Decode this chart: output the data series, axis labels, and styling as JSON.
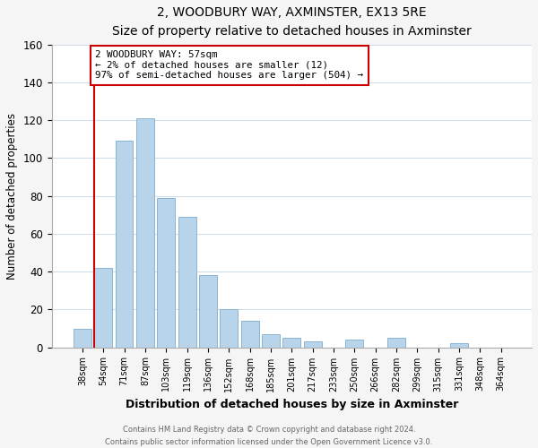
{
  "title": "2, WOODBURY WAY, AXMINSTER, EX13 5RE",
  "subtitle": "Size of property relative to detached houses in Axminster",
  "xlabel": "Distribution of detached houses by size in Axminster",
  "ylabel": "Number of detached properties",
  "bar_labels": [
    "38sqm",
    "54sqm",
    "71sqm",
    "87sqm",
    "103sqm",
    "119sqm",
    "136sqm",
    "152sqm",
    "168sqm",
    "185sqm",
    "201sqm",
    "217sqm",
    "233sqm",
    "250sqm",
    "266sqm",
    "282sqm",
    "299sqm",
    "315sqm",
    "331sqm",
    "348sqm",
    "364sqm"
  ],
  "bar_heights": [
    10,
    42,
    109,
    121,
    79,
    69,
    38,
    20,
    14,
    7,
    5,
    3,
    0,
    4,
    0,
    5,
    0,
    0,
    2,
    0,
    0
  ],
  "bar_color": "#b8d4ea",
  "bar_edge_color": "#8ab4d4",
  "vline_color": "#cc0000",
  "annotation_title": "2 WOODBURY WAY: 57sqm",
  "annotation_line1": "← 2% of detached houses are smaller (12)",
  "annotation_line2": "97% of semi-detached houses are larger (504) →",
  "annotation_box_color": "#ffffff",
  "annotation_box_edge": "#cc0000",
  "ylim": [
    0,
    160
  ],
  "yticks": [
    0,
    20,
    40,
    60,
    80,
    100,
    120,
    140,
    160
  ],
  "footer1": "Contains HM Land Registry data © Crown copyright and database right 2024.",
  "footer2": "Contains public sector information licensed under the Open Government Licence v3.0.",
  "bg_color": "#f5f5f5",
  "plot_bg_color": "#ffffff",
  "grid_color": "#d0dce8"
}
